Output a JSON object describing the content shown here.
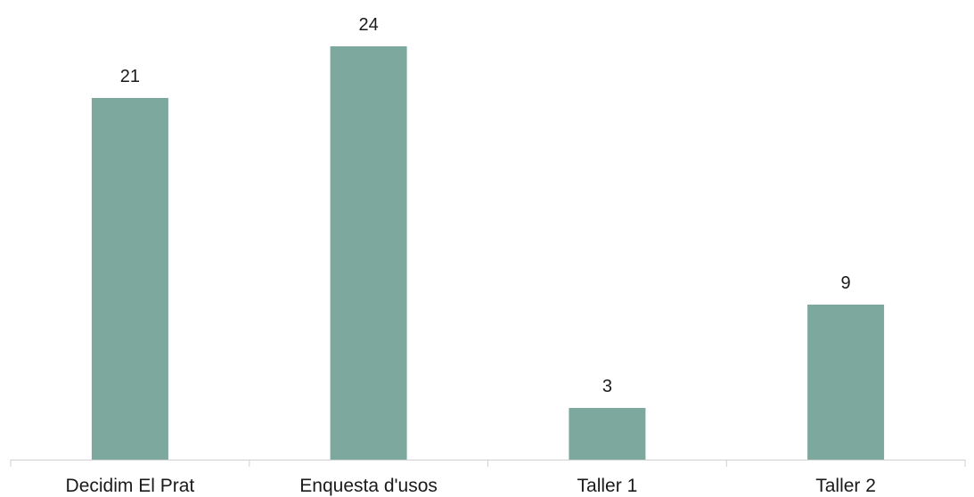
{
  "chart_data": {
    "type": "bar",
    "categories": [
      "Decidim El Prat",
      "Enquesta d'usos",
      "Taller 1",
      "Taller 2"
    ],
    "values": [
      21,
      24,
      3,
      9
    ],
    "title": "",
    "xlabel": "",
    "ylabel": "",
    "ylim": [
      0,
      24
    ],
    "grid": false,
    "legend": "none",
    "bar_color": "#7da89e",
    "axis_color": "#cfcfcf",
    "text_color": "#1a1a1a"
  }
}
